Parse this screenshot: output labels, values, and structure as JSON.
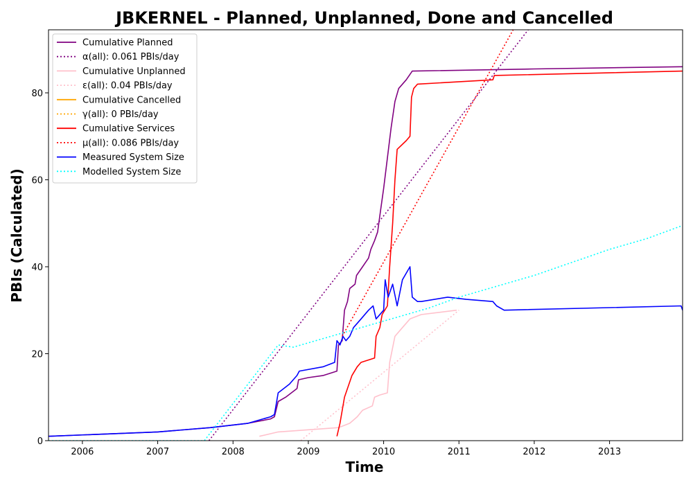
{
  "chart_data": {
    "type": "line",
    "title": "JBKERNEL - Planned, Unplanned, Done  and Cancelled",
    "xlabel": "Time",
    "ylabel": "PBIs (Calculated)",
    "xlim": [
      2005.55,
      2013.97
    ],
    "ylim": [
      0,
      94.5
    ],
    "x_ticks": [
      2006,
      2007,
      2008,
      2009,
      2010,
      2011,
      2012,
      2013
    ],
    "x_tick_labels": [
      "2006",
      "2007",
      "2008",
      "2009",
      "2010",
      "2011",
      "2012",
      "2013"
    ],
    "y_ticks": [
      0,
      20,
      40,
      60,
      80
    ],
    "y_tick_labels": [
      "0",
      "20",
      "40",
      "60",
      "80"
    ],
    "grid": false,
    "legend_position": "top-left",
    "series": [
      {
        "name": "Cumulative Planned",
        "color": "#800080",
        "style": "solid",
        "points": [
          [
            2005.55,
            1
          ],
          [
            2007.0,
            2
          ],
          [
            2007.7,
            3
          ],
          [
            2008.2,
            4
          ],
          [
            2008.5,
            5
          ],
          [
            2008.55,
            5.5
          ],
          [
            2008.6,
            9
          ],
          [
            2008.7,
            10
          ],
          [
            2008.85,
            12
          ],
          [
            2008.87,
            14
          ],
          [
            2009.0,
            14.5
          ],
          [
            2009.2,
            15
          ],
          [
            2009.38,
            16
          ],
          [
            2009.4,
            22
          ],
          [
            2009.45,
            23
          ],
          [
            2009.48,
            30
          ],
          [
            2009.52,
            32
          ],
          [
            2009.55,
            35
          ],
          [
            2009.62,
            36
          ],
          [
            2009.64,
            38
          ],
          [
            2009.72,
            40
          ],
          [
            2009.8,
            42
          ],
          [
            2009.83,
            44
          ],
          [
            2009.88,
            46
          ],
          [
            2009.92,
            48
          ],
          [
            2009.96,
            53
          ],
          [
            2010.0,
            58
          ],
          [
            2010.05,
            65
          ],
          [
            2010.1,
            72
          ],
          [
            2010.15,
            78
          ],
          [
            2010.2,
            81
          ],
          [
            2010.3,
            83
          ],
          [
            2010.38,
            85
          ],
          [
            2012.0,
            85.5
          ],
          [
            2013.97,
            86
          ]
        ]
      },
      {
        "name": "α(all): 0.061 PBIs/day",
        "color": "#800080",
        "style": "dotted",
        "points": [
          [
            2007.68,
            0
          ],
          [
            2011.92,
            94.5
          ]
        ]
      },
      {
        "name": "Cumulative Unplanned",
        "color": "#ffc0cb",
        "style": "solid",
        "points": [
          [
            2008.35,
            1
          ],
          [
            2008.6,
            2
          ],
          [
            2009.0,
            2.5
          ],
          [
            2009.4,
            3
          ],
          [
            2009.55,
            4
          ],
          [
            2009.65,
            5.5
          ],
          [
            2009.72,
            7
          ],
          [
            2009.85,
            8
          ],
          [
            2009.88,
            10
          ],
          [
            2009.95,
            10.5
          ],
          [
            2010.05,
            11
          ],
          [
            2010.08,
            18
          ],
          [
            2010.15,
            24
          ],
          [
            2010.25,
            26
          ],
          [
            2010.35,
            28
          ],
          [
            2010.5,
            29
          ],
          [
            2010.97,
            30
          ]
        ]
      },
      {
        "name": "ε(all): 0.04 PBIs/day",
        "color": "#ffc0cb",
        "style": "dotted",
        "points": [
          [
            2008.9,
            0
          ],
          [
            2011.0,
            30
          ]
        ]
      },
      {
        "name": "Cumulative Cancelled",
        "color": "#ffa500",
        "style": "solid",
        "points": []
      },
      {
        "name": "γ(all): 0 PBIs/day",
        "color": "#ffa500",
        "style": "dotted",
        "points": []
      },
      {
        "name": "Cumulative Services",
        "color": "#ff0000",
        "style": "solid",
        "points": [
          [
            2009.38,
            1
          ],
          [
            2009.42,
            4
          ],
          [
            2009.48,
            10
          ],
          [
            2009.52,
            12
          ],
          [
            2009.58,
            15
          ],
          [
            2009.65,
            17
          ],
          [
            2009.7,
            18
          ],
          [
            2009.88,
            19
          ],
          [
            2009.9,
            24
          ],
          [
            2009.95,
            26
          ],
          [
            2009.98,
            29
          ],
          [
            2010.05,
            31
          ],
          [
            2010.08,
            40
          ],
          [
            2010.12,
            50
          ],
          [
            2010.15,
            60
          ],
          [
            2010.18,
            67
          ],
          [
            2010.3,
            69
          ],
          [
            2010.35,
            70
          ],
          [
            2010.37,
            79
          ],
          [
            2010.4,
            81
          ],
          [
            2010.45,
            82
          ],
          [
            2011.45,
            83
          ],
          [
            2011.47,
            84
          ],
          [
            2013.97,
            85
          ]
        ]
      },
      {
        "name": "μ(all): 0.086 PBIs/day",
        "color": "#ff0000",
        "style": "dotted",
        "points": [
          [
            2009.45,
            24
          ],
          [
            2011.72,
            94.5
          ]
        ]
      },
      {
        "name": "Measured System Size",
        "color": "#0000ff",
        "style": "solid",
        "points": [
          [
            2005.55,
            1
          ],
          [
            2007.0,
            2
          ],
          [
            2007.7,
            3
          ],
          [
            2008.2,
            4
          ],
          [
            2008.5,
            5.5
          ],
          [
            2008.55,
            6
          ],
          [
            2008.6,
            11
          ],
          [
            2008.75,
            13
          ],
          [
            2008.85,
            15
          ],
          [
            2008.88,
            16
          ],
          [
            2009.2,
            17
          ],
          [
            2009.35,
            18
          ],
          [
            2009.38,
            23
          ],
          [
            2009.42,
            22
          ],
          [
            2009.46,
            24
          ],
          [
            2009.5,
            23
          ],
          [
            2009.55,
            24
          ],
          [
            2009.6,
            26
          ],
          [
            2009.7,
            28
          ],
          [
            2009.8,
            30
          ],
          [
            2009.86,
            31
          ],
          [
            2009.9,
            28
          ],
          [
            2010.0,
            30
          ],
          [
            2010.02,
            37
          ],
          [
            2010.06,
            33
          ],
          [
            2010.12,
            36
          ],
          [
            2010.18,
            31
          ],
          [
            2010.25,
            37
          ],
          [
            2010.35,
            40
          ],
          [
            2010.38,
            33
          ],
          [
            2010.45,
            32
          ],
          [
            2010.5,
            32
          ],
          [
            2010.85,
            33
          ],
          [
            2011.1,
            32.5
          ],
          [
            2011.45,
            32
          ],
          [
            2011.5,
            31
          ],
          [
            2011.6,
            30
          ],
          [
            2013.95,
            31
          ],
          [
            2013.97,
            30
          ]
        ]
      },
      {
        "name": "Modelled System Size",
        "color": "#00ffff",
        "style": "dotted",
        "points": [
          [
            2005.55,
            0
          ],
          [
            2007.62,
            0
          ],
          [
            2008.6,
            22
          ],
          [
            2008.8,
            21.5
          ],
          [
            2009.0,
            22.5
          ],
          [
            2009.4,
            24.5
          ],
          [
            2009.8,
            26.5
          ],
          [
            2010.2,
            28.5
          ],
          [
            2010.6,
            30.5
          ],
          [
            2011.0,
            33
          ],
          [
            2011.5,
            35.5
          ],
          [
            2012.0,
            38
          ],
          [
            2012.5,
            41
          ],
          [
            2013.0,
            44
          ],
          [
            2013.5,
            46.5
          ],
          [
            2013.97,
            49.5
          ]
        ]
      }
    ]
  }
}
